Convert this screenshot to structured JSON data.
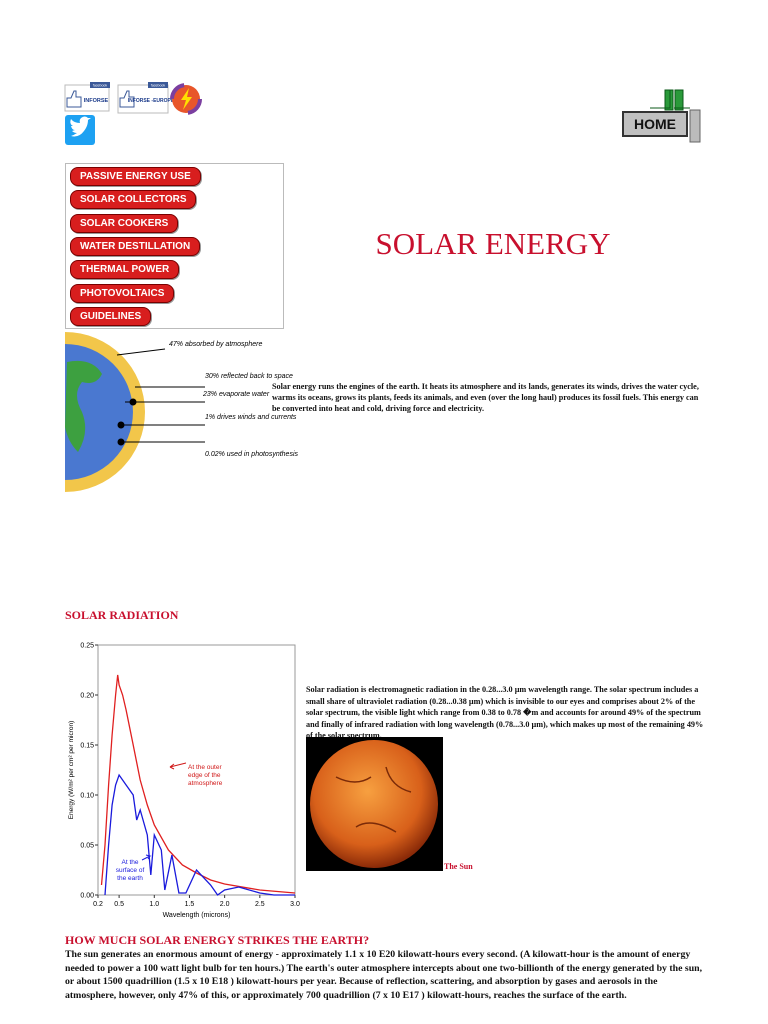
{
  "social": {
    "inforse": "INFORSE",
    "inforse_europe": "INFORSE -EUROPE",
    "like": "facebook"
  },
  "home": "HOME",
  "menu": [
    "PASSIVE ENERGY USE",
    "SOLAR COLLECTORS",
    "SOLAR COOKERS",
    "WATER DESTILLATION",
    "THERMAL POWER",
    "PHOTOVOLTAICS",
    "GUIDELINES"
  ],
  "title": "SOLAR ENERGY",
  "globe_labels": [
    "47% absorbed by atmosphere",
    "30% reflected back to space",
    "23% evaporate water",
    "1% drives winds and currents",
    "0.02% used in photosynthesis"
  ],
  "intro": "Solar energy runs the engines of the earth. It heats its atmosphere and its lands, generates its winds, drives the water cycle, warms its oceans, grows its plants, feeds its animals, and even (over the long haul) produces its fossil fuels. This energy can be converted into heat and cold, driving force and electricity.",
  "radiation_heading": "SOLAR RADIATION",
  "radiation_text": "Solar radiation is electromagnetic radiation in the 0.28...3.0 µm wavelength range. The solar spectrum includes a small share of ultraviolet radiation (0.28...0.38 µm) which is invisible to our eyes and comprises about 2% of the solar spectrum, the visible light which range from 0.38 to 0.78 �m and accounts for around 49% of the spectrum and finally of infrared radiation with long wavelength (0.78...3.0 µm), which makes up most of the remaining 49% of the solar spectrum.",
  "sun_caption": "The Sun",
  "strike_heading": "HOW MUCH SOLAR ENERGY STRIKES THE EARTH?",
  "strike_text": "The sun generates an enormous amount of energy - approximately 1.1 x 10 E20 kilowatt-hours every second. (A kilowatt-hour is the amount of energy needed to power a 100 watt light bulb for ten hours.) The earth's outer atmosphere intercepts about one two-billionth of the energy generated by the sun, or about 1500 quadrillion (1.5 x 10 E18 ) kilowatt-hours per year. Because of reflection, scattering, and absorption by gases and aerosols in the atmosphere, however, only 47% of this, or approximately 700 quadrillion (7 x 10 E17 ) kilowatt-hours, reaches the surface of the earth.",
  "chart_data": {
    "type": "line",
    "x_label": "Wavelength (microns)",
    "y_label": "Energy (W/m² per cm² per micron)",
    "annotations": [
      "At the outer edge of the atmosphere",
      "At the surface of the earth"
    ],
    "xlim": [
      0.2,
      3.0
    ],
    "xticks": [
      0.2,
      0.5,
      {
        "value": 1.0,
        "label": "1.0"
      },
      1.5,
      {
        "value": 2.0,
        "label": "2.0"
      },
      2.5,
      {
        "value": 3.0,
        "label": "3.0"
      }
    ],
    "ylim": [
      0,
      0.25
    ],
    "yticks": [
      {
        "value": 0,
        "label": "0.00"
      },
      0.05,
      {
        "value": 0.1,
        "label": "0.10"
      },
      0.15,
      {
        "value": 0.2,
        "label": "0.20"
      },
      0.25
    ],
    "series": [
      {
        "color": "#e02020",
        "x": [
          0.25,
          0.3,
          0.35,
          0.4,
          0.45,
          0.48,
          0.5,
          0.55,
          0.6,
          0.7,
          0.8,
          0.9,
          1.0,
          1.2,
          1.4,
          1.6,
          1.8,
          2.0,
          2.5,
          3.0
        ],
        "values": [
          0.01,
          0.05,
          0.11,
          0.16,
          0.2,
          0.22,
          0.21,
          0.2,
          0.185,
          0.15,
          0.115,
          0.09,
          0.07,
          0.045,
          0.03,
          0.022,
          0.015,
          0.011,
          0.005,
          0.002
        ]
      },
      {
        "color": "#1a1adc",
        "x": [
          0.3,
          0.35,
          0.4,
          0.45,
          0.5,
          0.55,
          0.6,
          0.7,
          0.75,
          0.8,
          0.9,
          0.95,
          1.0,
          1.1,
          1.15,
          1.25,
          1.35,
          1.45,
          1.6,
          1.8,
          1.9,
          2.0,
          2.2,
          2.5,
          2.7,
          3.0
        ],
        "values": [
          0,
          0.05,
          0.09,
          0.11,
          0.12,
          0.115,
          0.11,
          0.1,
          0.075,
          0.085,
          0.06,
          0.02,
          0.06,
          0.045,
          0.005,
          0.04,
          0.002,
          0.002,
          0.025,
          0.01,
          0,
          0.005,
          0.008,
          0.002,
          0,
          0
        ]
      }
    ]
  }
}
